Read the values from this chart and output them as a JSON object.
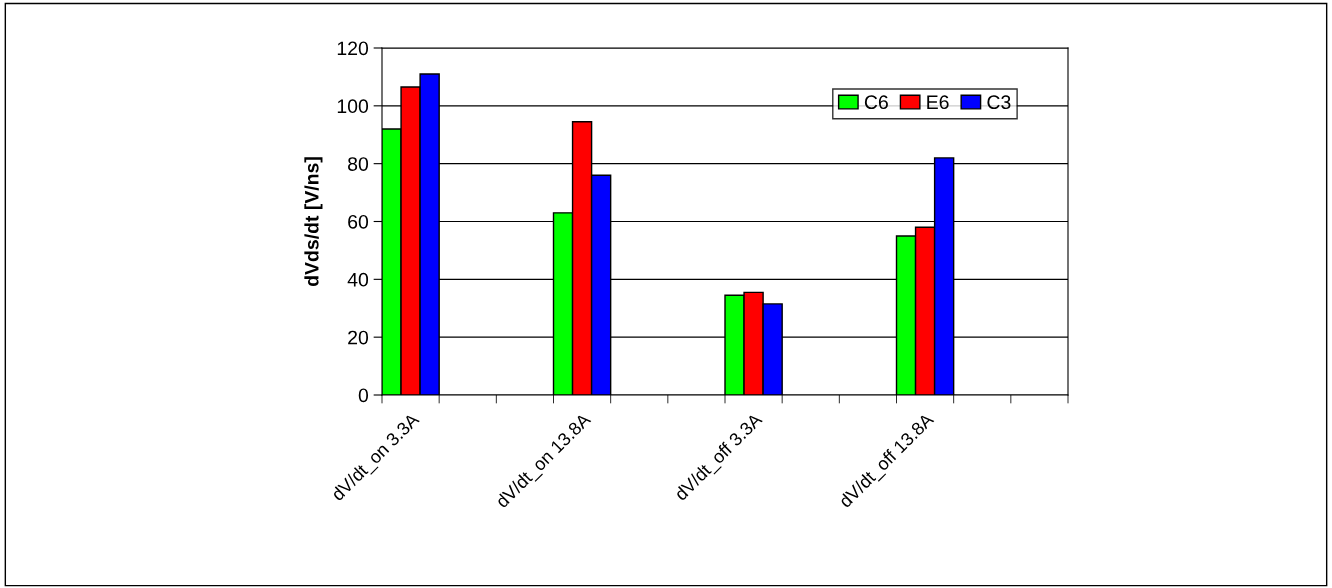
{
  "chart_data": {
    "type": "bar",
    "ylabel": "dVds/dt [V/ns]",
    "categories": [
      "dV/dt_on 3.3A",
      null,
      null,
      "dV/dt_on 13.8A",
      null,
      null,
      "dV/dt_off 3.3A",
      null,
      null,
      "dV/dt_off 13.8A",
      null,
      null
    ],
    "series": [
      {
        "name": "C6",
        "color": "#00ff00",
        "values": [
          92,
          null,
          null,
          63,
          null,
          null,
          34.5,
          null,
          null,
          55,
          null,
          null
        ]
      },
      {
        "name": "E6",
        "color": "#ff0000",
        "values": [
          106.5,
          null,
          null,
          94.5,
          null,
          null,
          35.5,
          null,
          null,
          58,
          null,
          null
        ]
      },
      {
        "name": "C3",
        "color": "#0000ff",
        "values": [
          111,
          null,
          null,
          76,
          null,
          null,
          31.5,
          null,
          null,
          82,
          null,
          null
        ]
      }
    ],
    "ylim": [
      0,
      120
    ],
    "yticks": [
      0,
      20,
      40,
      60,
      80,
      100,
      120
    ],
    "grid": "y",
    "legend": "top right"
  }
}
